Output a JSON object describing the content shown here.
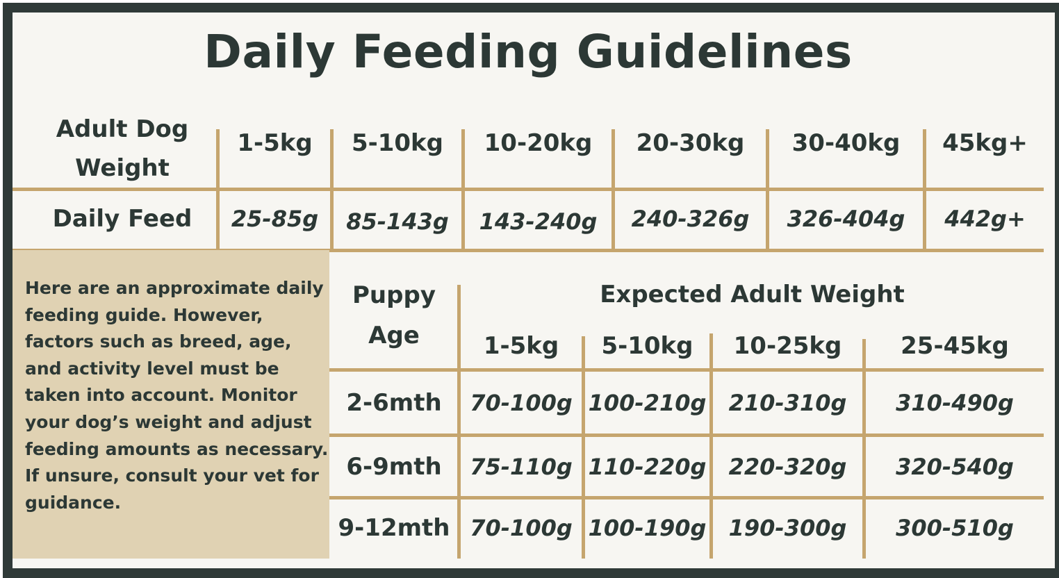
{
  "title": "Daily Feeding Guidelines",
  "adult": {
    "weight_label": "Adult Dog Weight",
    "feed_label": "Daily Feed",
    "columns": [
      {
        "weight": "1-5kg",
        "feed": "25-85g"
      },
      {
        "weight": "5-10kg",
        "feed": "85-143g"
      },
      {
        "weight": "10-20kg",
        "feed": "143-240g"
      },
      {
        "weight": "20-30kg",
        "feed": "240-326g"
      },
      {
        "weight": "30-40kg",
        "feed": "326-404g"
      },
      {
        "weight": "45kg+",
        "feed": "442g+"
      }
    ]
  },
  "note": "Here are an approximate daily feeding guide. However, factors such as breed, age, and activity level must be taken into account. Monitor your dog’s weight and adjust feeding amounts as necessary. If unsure, consult your vet for guidance.",
  "puppy": {
    "age_label": "Puppy Age",
    "expected_label": "Expected Adult Weight",
    "weights": [
      "1-5kg",
      "5-10kg",
      "10-25kg",
      "25-45kg"
    ],
    "rows": [
      {
        "age": "2-6mth",
        "values": [
          "70-100g",
          "100-210g",
          "210-310g",
          "310-490g"
        ]
      },
      {
        "age": "6-9mth",
        "values": [
          "75-110g",
          "110-220g",
          "220-320g",
          "320-540g"
        ]
      },
      {
        "age": "9-12mth",
        "values": [
          "70-100g",
          "100-190g",
          "190-300g",
          "300-510g"
        ]
      }
    ]
  },
  "colors": {
    "frame": "#2f3a38",
    "gold": "#c5a56e",
    "note_bg": "#e0d2b3",
    "text": "#2c3835",
    "bg": "#f7f6f2"
  }
}
